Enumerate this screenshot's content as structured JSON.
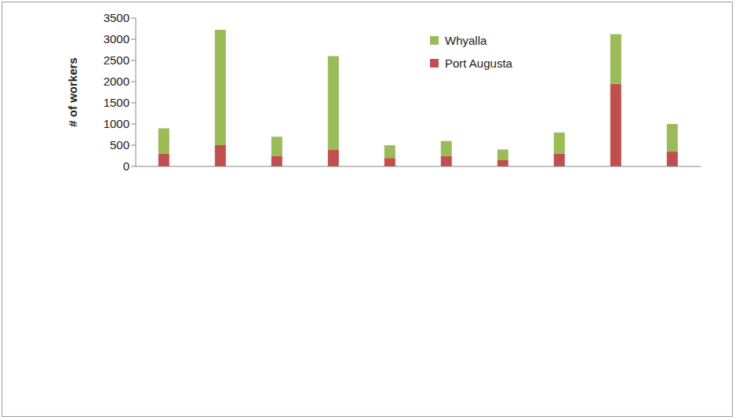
{
  "chart_data": {
    "type": "bar",
    "stacked": true,
    "y_label": "# of workers",
    "categories": [
      null,
      null,
      null,
      null,
      null,
      null,
      null,
      null,
      null,
      null
    ],
    "series": [
      {
        "name": "Port Augusta",
        "color": "#C0504D",
        "values": [
          300,
          500,
          250,
          400,
          200,
          250,
          150,
          300,
          1950,
          350
        ]
      },
      {
        "name": "Whyalla",
        "color": "#9BBB59",
        "values": [
          600,
          2720,
          450,
          2200,
          300,
          350,
          250,
          500,
          1170,
          650
        ]
      }
    ],
    "ylim": [
      0,
      3500
    ],
    "yticks": [
      0,
      500,
      1000,
      1500,
      2000,
      2500,
      3000,
      3500
    ],
    "grid": false,
    "legend": "top"
  }
}
